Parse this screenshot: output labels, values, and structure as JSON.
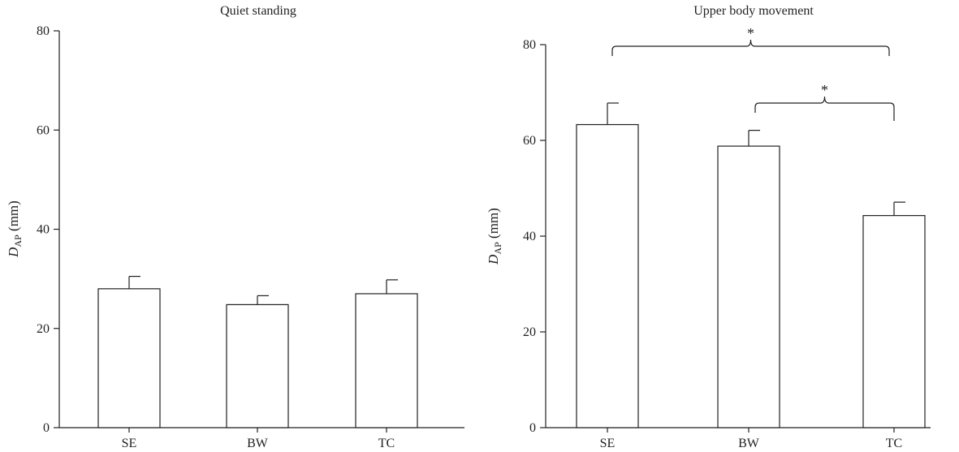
{
  "chart_data": [
    {
      "type": "bar",
      "title": "Quiet standing",
      "ylabel_main": "D",
      "ylabel_sub": "AP",
      "ylabel_unit": " (mm)",
      "categories": [
        "SE",
        "BW",
        "TC"
      ],
      "values": [
        28,
        24.8,
        27
      ],
      "errors": [
        2.5,
        1.8,
        2.8
      ],
      "ylim": [
        0,
        80
      ],
      "yticks": [
        0,
        20,
        40,
        60,
        80
      ],
      "significance": []
    },
    {
      "type": "bar",
      "title": "Upper body movement",
      "ylabel_main": "D",
      "ylabel_sub": "AP",
      "ylabel_unit": " (mm)",
      "categories": [
        "SE",
        "BW",
        "TC"
      ],
      "values": [
        63.3,
        58.8,
        44.3
      ],
      "errors": [
        4.5,
        3.3,
        2.8
      ],
      "ylim": [
        0,
        80
      ],
      "yticks": [
        0,
        20,
        40,
        60,
        80
      ],
      "significance": [
        {
          "from": "SE",
          "to": "TC",
          "label": "*"
        },
        {
          "from": "BW",
          "to": "TC",
          "label": "*"
        }
      ]
    }
  ]
}
